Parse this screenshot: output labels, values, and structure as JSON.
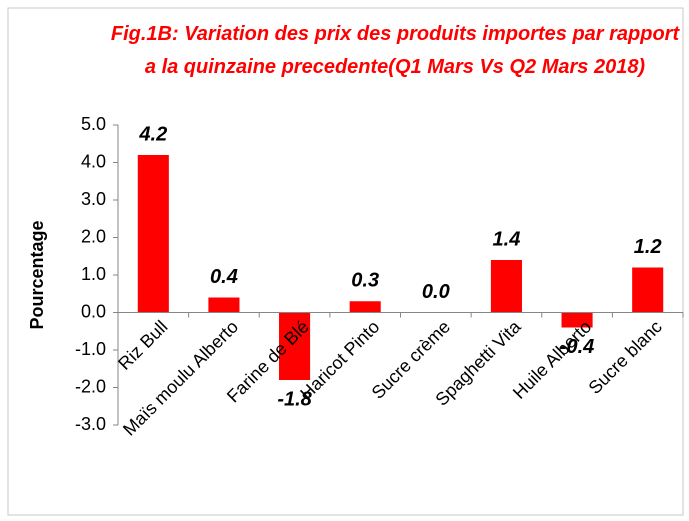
{
  "chart_data": {
    "type": "bar",
    "title": "Fig.1B: Variation des prix des produits importes par rapport a la quinzaine precedente(Q1 Mars Vs Q2 Mars 2018)",
    "y_label": "Pourcentage",
    "categories": [
      "Riz  Bull",
      "Maïs moulu  Alberto",
      "Farine de Blé",
      "Haricot  Pinto",
      "Sucre crème",
      "Spaghetti Vita",
      "Huile Alberto",
      "Sucre blanc"
    ],
    "values": [
      4.2,
      0.4,
      -1.8,
      0.3,
      0.0,
      1.4,
      -0.4,
      1.2
    ],
    "value_labels": [
      "4.2",
      "0.4",
      "-1.8",
      "0.3",
      "0.0",
      "1.4",
      "-0.4",
      "1.2"
    ],
    "color": "#ff0000",
    "ylim": [
      -3,
      5
    ],
    "yticks": [
      {
        "value": -3,
        "label": "-3.0"
      },
      {
        "value": -2,
        "label": "-2.0"
      },
      {
        "value": -1,
        "label": "-1.0"
      },
      {
        "value": 0,
        "label": "0.0"
      },
      {
        "value": 1,
        "label": "1.0"
      },
      {
        "value": 2,
        "label": "2.0"
      },
      {
        "value": 3,
        "label": "3.0"
      },
      {
        "value": 4,
        "label": "4.0"
      },
      {
        "value": 5,
        "label": "5.0"
      }
    ],
    "grid": false
  }
}
